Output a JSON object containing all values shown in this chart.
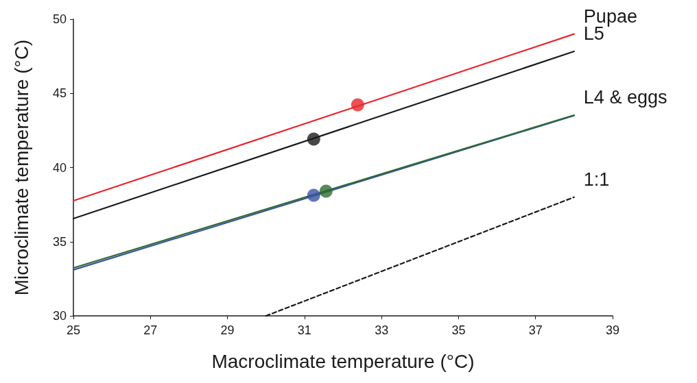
{
  "chart_data": {
    "type": "line",
    "xlabel": "Macroclimate temperature (°C)",
    "ylabel": "Microclimate temperature (°C)",
    "xlim": [
      25,
      39
    ],
    "xticks": [
      25,
      27,
      29,
      31,
      33,
      35,
      37,
      39
    ],
    "ylim": [
      30,
      50
    ],
    "yticks": [
      30,
      35,
      40,
      45,
      50
    ],
    "grid": false,
    "legend": false,
    "series": [
      {
        "name": "Pupae",
        "color": "#e8262b",
        "x": [
          25,
          38
        ],
        "values": [
          37.76,
          49.0
        ],
        "marker": "none",
        "line_style": "solid"
      },
      {
        "name": "L5",
        "color": "#1a1a1a",
        "x": [
          25,
          38
        ],
        "values": [
          36.56,
          47.83
        ],
        "marker": "none",
        "line_style": "solid"
      },
      {
        "color": "#3953a4",
        "x": [
          25,
          38
        ],
        "values": [
          33.1,
          43.5
        ],
        "marker": "none",
        "line_style": "solid"
      },
      {
        "name": "L4 & eggs",
        "color": "#2e6b30",
        "x": [
          25,
          38
        ],
        "values": [
          33.23,
          43.53
        ],
        "marker": "none",
        "line_style": "solid"
      },
      {
        "name": "1:1",
        "color": "#1a1a1a",
        "x": [
          30,
          38
        ],
        "values": [
          30,
          38
        ],
        "marker": "none",
        "line_style": "dashed"
      },
      {
        "type": "scatter",
        "color": "#e8262b",
        "x": [
          32.38
        ],
        "values": [
          44.23
        ],
        "marker": "circle"
      },
      {
        "type": "scatter",
        "color": "#1a1a1a",
        "x": [
          31.24
        ],
        "values": [
          41.92
        ],
        "marker": "circle"
      },
      {
        "type": "scatter",
        "color": "#3953a4",
        "x": [
          31.24
        ],
        "values": [
          38.13
        ],
        "marker": "circle"
      },
      {
        "type": "scatter",
        "color": "#2e6b30",
        "x": [
          31.56
        ],
        "values": [
          38.41
        ],
        "marker": "circle"
      }
    ]
  }
}
